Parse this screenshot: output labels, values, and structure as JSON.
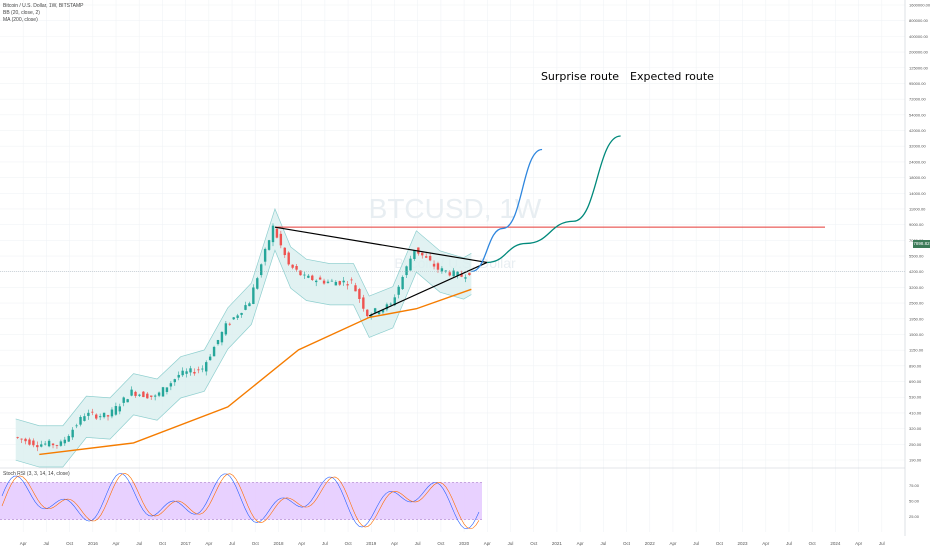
{
  "header": {
    "symbol_line": "Bitcoin / U.S. Dollar, 1W, BITSTAMP",
    "bb_line": "BB (20, close, 2)",
    "ma_line": "MA (200, close)",
    "rsi_line": "Stoch RSI (3, 3, 14, 14, close)"
  },
  "watermark": {
    "symbol": "BTCUSD, 1W",
    "name": "Bitcoin / U.S. Dollar"
  },
  "annotations": {
    "surprise": "Surprise route",
    "expected": "Expected route"
  },
  "last_price": "7898.82",
  "colors": {
    "up_candle": "#26a69a",
    "down_candle": "#ef5350",
    "bb_fill": "#d9efef",
    "bb_line": "#8fcfcf",
    "ma200": "#f57c00",
    "resistance": "#e53935",
    "surprise_route": "#2e86de",
    "expected_route": "#00897b",
    "rsi_band": "#e6ccff"
  },
  "price_axis": [
    "1600000.00",
    "800000.00",
    "400000.00",
    "200000.00",
    "125000.00",
    "95000.00",
    "72000.00",
    "54000.00",
    "42000.00",
    "32000.00",
    "24000.00",
    "18000.00",
    "14000.00",
    "11000.00",
    "9000.00",
    "7000.00",
    "5500.00",
    "4200.00",
    "3200.00",
    "2500.00",
    "1950.00",
    "1500.00",
    "1150.00",
    "890.00",
    "690.00",
    "530.00",
    "410.00",
    "320.00",
    "250.00",
    "190.00"
  ],
  "rsi_axis": [
    "75.00",
    "50.00",
    "25.00"
  ],
  "time_axis": [
    "Apr",
    "Jul",
    "Oct",
    "2016",
    "Apr",
    "Jul",
    "Oct",
    "2017",
    "Apr",
    "Jul",
    "Oct",
    "2018",
    "Apr",
    "Jul",
    "Oct",
    "2019",
    "Apr",
    "Jul",
    "Oct",
    "2020",
    "Apr",
    "Jul",
    "Oct",
    "2021",
    "Apr",
    "Jul",
    "Oct",
    "2022",
    "Apr",
    "Jul",
    "Oct",
    "2023",
    "Apr",
    "Jul",
    "Oct",
    "2024",
    "Apr",
    "Jul"
  ],
  "chart_data": {
    "type": "candlestick",
    "timeframe": "1W",
    "y_scale": "log",
    "ylim": [
      150,
      2000000
    ],
    "price_series": [
      {
        "date": "2015-03",
        "price": 270
      },
      {
        "date": "2015-06",
        "price": 235
      },
      {
        "date": "2015-09",
        "price": 235
      },
      {
        "date": "2015-12",
        "price": 430
      },
      {
        "date": "2016-03",
        "price": 415
      },
      {
        "date": "2016-06",
        "price": 680
      },
      {
        "date": "2016-09",
        "price": 610
      },
      {
        "date": "2016-12",
        "price": 960
      },
      {
        "date": "2017-03",
        "price": 1100
      },
      {
        "date": "2017-06",
        "price": 2600
      },
      {
        "date": "2017-09",
        "price": 4300
      },
      {
        "date": "2017-12",
        "price": 19500
      },
      {
        "date": "2018-02",
        "price": 9000
      },
      {
        "date": "2018-04",
        "price": 7000
      },
      {
        "date": "2018-07",
        "price": 6400
      },
      {
        "date": "2018-10",
        "price": 6400
      },
      {
        "date": "2018-12",
        "price": 3300
      },
      {
        "date": "2019-03",
        "price": 4000
      },
      {
        "date": "2019-06",
        "price": 12500
      },
      {
        "date": "2019-09",
        "price": 8300
      },
      {
        "date": "2019-12",
        "price": 7200
      },
      {
        "date": "2020-01",
        "price": 7900
      }
    ],
    "ma200": [
      {
        "date": "2015-06",
        "price": 190
      },
      {
        "date": "2016-06",
        "price": 240
      },
      {
        "date": "2017-06",
        "price": 500
      },
      {
        "date": "2018-03",
        "price": 1600
      },
      {
        "date": "2018-12",
        "price": 3100
      },
      {
        "date": "2019-06",
        "price": 3700
      },
      {
        "date": "2020-01",
        "price": 5500
      }
    ],
    "triangle": {
      "apex": {
        "date": "2020-03",
        "price": 9500
      },
      "upper_start": {
        "date": "2017-12",
        "price": 19500
      },
      "lower_start": {
        "date": "2018-12",
        "price": 3200
      }
    },
    "resistance_level": 19500,
    "routes": [
      {
        "name": "Surprise route",
        "points": [
          {
            "date": "2020-01",
            "price": 7900
          },
          {
            "date": "2020-05",
            "price": 19000
          },
          {
            "date": "2020-10",
            "price": 95000
          }
        ]
      },
      {
        "name": "Expected route",
        "points": [
          {
            "date": "2020-03",
            "price": 9500
          },
          {
            "date": "2020-08",
            "price": 14000
          },
          {
            "date": "2021-02",
            "price": 22000
          },
          {
            "date": "2021-08",
            "price": 125000
          }
        ]
      }
    ],
    "stoch_rsi_band": [
      20,
      80
    ]
  }
}
